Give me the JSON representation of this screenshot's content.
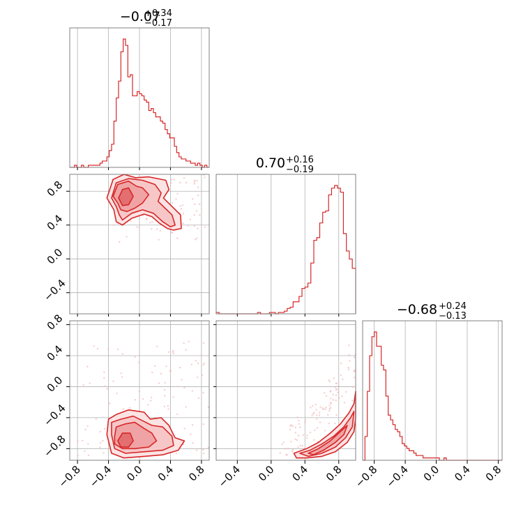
{
  "chart_data": {
    "type": "corner",
    "color": "#d62728",
    "parameters": [
      {
        "title_value": "−0.07",
        "title_plus": "+0.34",
        "title_minus": "−0.17",
        "range": [
          -0.9,
          0.9
        ]
      },
      {
        "title_value": "0.70",
        "title_plus": "+0.16",
        "title_minus": "−0.19",
        "range": [
          -0.65,
          1.0
        ]
      },
      {
        "title_value": "−0.68",
        "title_plus": "+0.24",
        "title_minus": "−0.13",
        "range": [
          -0.95,
          0.85
        ]
      }
    ],
    "ticks": {
      "p0": [
        -0.8,
        -0.4,
        0.0,
        0.4,
        0.8
      ],
      "p1": [
        -0.4,
        0.0,
        0.4,
        0.8
      ],
      "p2": [
        -0.8,
        -0.4,
        0.0,
        0.4,
        0.8
      ]
    },
    "tick_labels": {
      "p0": [
        "−0.8",
        "−0.4",
        "0.0",
        "0.4",
        "0.8"
      ],
      "p1": [
        "−0.4",
        "0.0",
        "0.4",
        "0.8"
      ],
      "p2": [
        "−0.8",
        "−0.4",
        "0.0",
        "0.4",
        "0.8"
      ]
    },
    "grid": true,
    "hist_0": {
      "edges": [
        -0.9,
        -0.87,
        -0.84,
        -0.81,
        -0.78,
        -0.75,
        -0.72,
        -0.69,
        -0.66,
        -0.63,
        -0.6,
        -0.57,
        -0.54,
        -0.51,
        -0.48,
        -0.45,
        -0.42,
        -0.39,
        -0.36,
        -0.33,
        -0.3,
        -0.27,
        -0.24,
        -0.21,
        -0.18,
        -0.15,
        -0.12,
        -0.09,
        -0.06,
        -0.03,
        0.0,
        0.03,
        0.06,
        0.09,
        0.12,
        0.15,
        0.18,
        0.21,
        0.24,
        0.27,
        0.3,
        0.33,
        0.36,
        0.39,
        0.42,
        0.45,
        0.48,
        0.51,
        0.54,
        0.57,
        0.6,
        0.63,
        0.66,
        0.69,
        0.72,
        0.75,
        0.78,
        0.81,
        0.84,
        0.87,
        0.9
      ],
      "values": [
        0,
        0,
        1,
        0,
        0,
        1,
        0,
        0,
        1,
        1,
        1,
        1,
        1,
        2,
        3,
        3,
        5,
        8,
        11,
        22,
        33,
        41,
        55,
        61,
        58,
        43,
        44,
        34,
        34,
        36,
        35,
        34,
        32,
        31,
        27,
        28,
        26,
        24,
        24,
        22,
        21,
        18,
        16,
        14,
        14,
        10,
        7,
        5,
        4,
        4,
        3,
        3,
        2,
        2,
        1,
        2,
        1,
        0,
        1,
        0
      ]
    },
    "hist_1": {
      "edges": [
        -0.65,
        -0.615,
        -0.58,
        -0.545,
        -0.51,
        -0.475,
        -0.44,
        -0.405,
        -0.37,
        -0.335,
        -0.3,
        -0.265,
        -0.23,
        -0.195,
        -0.16,
        -0.125,
        -0.09,
        -0.055,
        -0.02,
        0.015,
        0.05,
        0.085,
        0.12,
        0.155,
        0.19,
        0.225,
        0.26,
        0.295,
        0.33,
        0.365,
        0.4,
        0.435,
        0.47,
        0.505,
        0.54,
        0.575,
        0.61,
        0.645,
        0.68,
        0.715,
        0.75,
        0.785,
        0.82,
        0.855,
        0.89,
        0.925,
        0.96,
        1.0
      ],
      "values": [
        1,
        0,
        0,
        0,
        0,
        0,
        0,
        0,
        0,
        0,
        0,
        0,
        0,
        0,
        1,
        0,
        0,
        0,
        1,
        1,
        0,
        1,
        1,
        2,
        4,
        5,
        9,
        9,
        13,
        19,
        20,
        23,
        38,
        55,
        57,
        68,
        76,
        77,
        89,
        94,
        96,
        94,
        91,
        60,
        47,
        41,
        34
      ]
    },
    "hist_2": {
      "edges": [
        -0.95,
        -0.92,
        -0.89,
        -0.86,
        -0.83,
        -0.8,
        -0.77,
        -0.74,
        -0.71,
        -0.68,
        -0.65,
        -0.62,
        -0.59,
        -0.56,
        -0.53,
        -0.5,
        -0.47,
        -0.44,
        -0.41,
        -0.38,
        -0.35,
        -0.32,
        -0.29,
        -0.26,
        -0.23,
        -0.2,
        -0.17,
        -0.14,
        -0.11,
        -0.08,
        -0.05,
        -0.02,
        0.01,
        0.04,
        0.07,
        0.1,
        0.13,
        0.16,
        0.19,
        0.22,
        0.25,
        0.28,
        0.31,
        0.34,
        0.37,
        0.4,
        0.43,
        0.46,
        0.49,
        0.52,
        0.55,
        0.58,
        0.61,
        0.64,
        0.67,
        0.7,
        0.73,
        0.76,
        0.79,
        0.82,
        0.85
      ],
      "values": [
        0,
        10,
        29,
        44,
        52,
        54,
        48,
        48,
        40,
        38,
        27,
        19,
        17,
        15,
        13,
        12,
        10,
        7,
        6,
        5,
        4,
        4,
        3,
        2,
        2,
        2,
        1,
        1,
        1,
        1,
        1,
        1,
        1,
        0,
        0,
        1,
        0,
        0,
        0,
        0,
        0,
        0,
        0,
        0,
        0,
        0,
        0,
        0,
        0,
        0,
        0,
        0,
        0,
        0,
        0,
        0,
        0,
        0,
        0,
        0
      ]
    },
    "contours_1_0": [
      [
        [
          -0.42,
          0.72
        ],
        [
          -0.34,
          0.94
        ],
        [
          -0.2,
          1.0
        ],
        [
          -0.05,
          0.96
        ],
        [
          0.12,
          0.97
        ],
        [
          0.34,
          0.93
        ],
        [
          0.38,
          0.82
        ],
        [
          0.31,
          0.72
        ],
        [
          0.42,
          0.62
        ],
        [
          0.53,
          0.52
        ],
        [
          0.54,
          0.36
        ],
        [
          0.44,
          0.34
        ],
        [
          0.36,
          0.36
        ],
        [
          0.26,
          0.42
        ],
        [
          0.16,
          0.5
        ],
        [
          0.06,
          0.53
        ],
        [
          -0.1,
          0.48
        ],
        [
          -0.22,
          0.4
        ],
        [
          -0.3,
          0.44
        ],
        [
          -0.33,
          0.58
        ],
        [
          -0.42,
          0.72
        ]
      ],
      [
        [
          -0.36,
          0.72
        ],
        [
          -0.3,
          0.9
        ],
        [
          -0.14,
          0.95
        ],
        [
          0.04,
          0.93
        ],
        [
          0.2,
          0.88
        ],
        [
          0.28,
          0.78
        ],
        [
          0.24,
          0.68
        ],
        [
          0.33,
          0.6
        ],
        [
          0.42,
          0.52
        ],
        [
          0.46,
          0.4
        ],
        [
          0.4,
          0.38
        ],
        [
          0.3,
          0.44
        ],
        [
          0.18,
          0.54
        ],
        [
          0.04,
          0.58
        ],
        [
          -0.1,
          0.54
        ],
        [
          -0.22,
          0.46
        ],
        [
          -0.26,
          0.52
        ],
        [
          -0.3,
          0.62
        ],
        [
          -0.36,
          0.72
        ]
      ],
      [
        [
          -0.34,
          0.74
        ],
        [
          -0.28,
          0.88
        ],
        [
          -0.14,
          0.92
        ],
        [
          -0.04,
          0.86
        ],
        [
          0.04,
          0.84
        ],
        [
          0.12,
          0.76
        ],
        [
          0.04,
          0.66
        ],
        [
          -0.06,
          0.6
        ],
        [
          -0.16,
          0.56
        ],
        [
          -0.24,
          0.58
        ],
        [
          -0.28,
          0.66
        ],
        [
          -0.34,
          0.74
        ]
      ],
      [
        [
          -0.27,
          0.72
        ],
        [
          -0.22,
          0.82
        ],
        [
          -0.14,
          0.84
        ],
        [
          -0.08,
          0.74
        ],
        [
          -0.14,
          0.64
        ],
        [
          -0.22,
          0.63
        ],
        [
          -0.27,
          0.72
        ]
      ]
    ],
    "contours_2_0": [
      [
        [
          -0.42,
          -0.62
        ],
        [
          -0.4,
          -0.42
        ],
        [
          -0.3,
          -0.36
        ],
        [
          -0.14,
          -0.3
        ],
        [
          0.06,
          -0.33
        ],
        [
          0.14,
          -0.42
        ],
        [
          0.28,
          -0.4
        ],
        [
          0.38,
          -0.5
        ],
        [
          0.46,
          -0.66
        ],
        [
          0.58,
          -0.7
        ],
        [
          0.5,
          -0.82
        ],
        [
          0.3,
          -0.88
        ],
        [
          0.06,
          -0.9
        ],
        [
          -0.2,
          -0.92
        ],
        [
          -0.36,
          -0.86
        ],
        [
          -0.42,
          -0.62
        ]
      ],
      [
        [
          -0.36,
          -0.62
        ],
        [
          -0.36,
          -0.46
        ],
        [
          -0.24,
          -0.42
        ],
        [
          -0.08,
          -0.38
        ],
        [
          0.04,
          -0.44
        ],
        [
          0.16,
          -0.5
        ],
        [
          0.3,
          -0.52
        ],
        [
          0.42,
          -0.64
        ],
        [
          0.44,
          -0.76
        ],
        [
          0.3,
          -0.82
        ],
        [
          0.06,
          -0.84
        ],
        [
          -0.18,
          -0.86
        ],
        [
          -0.32,
          -0.8
        ],
        [
          -0.36,
          -0.62
        ]
      ],
      [
        [
          -0.32,
          -0.64
        ],
        [
          -0.3,
          -0.52
        ],
        [
          -0.18,
          -0.48
        ],
        [
          -0.06,
          -0.46
        ],
        [
          0.06,
          -0.54
        ],
        [
          0.16,
          -0.6
        ],
        [
          0.22,
          -0.7
        ],
        [
          0.12,
          -0.78
        ],
        [
          -0.06,
          -0.8
        ],
        [
          -0.22,
          -0.8
        ],
        [
          -0.32,
          -0.74
        ],
        [
          -0.32,
          -0.64
        ]
      ],
      [
        [
          -0.28,
          -0.7
        ],
        [
          -0.22,
          -0.6
        ],
        [
          -0.12,
          -0.6
        ],
        [
          -0.08,
          -0.7
        ],
        [
          -0.14,
          -0.78
        ],
        [
          -0.24,
          -0.78
        ],
        [
          -0.28,
          -0.7
        ]
      ]
    ],
    "contours_2_1": [
      [
        [
          0.27,
          -0.86
        ],
        [
          0.42,
          -0.8
        ],
        [
          0.56,
          -0.72
        ],
        [
          0.7,
          -0.6
        ],
        [
          0.82,
          -0.48
        ],
        [
          0.92,
          -0.34
        ],
        [
          0.98,
          -0.22
        ],
        [
          1.0,
          -0.06
        ],
        [
          1.0,
          -0.4
        ],
        [
          0.98,
          -0.58
        ],
        [
          0.9,
          -0.72
        ],
        [
          0.76,
          -0.84
        ],
        [
          0.6,
          -0.9
        ],
        [
          0.42,
          -0.92
        ],
        [
          0.3,
          -0.92
        ],
        [
          0.27,
          -0.86
        ]
      ],
      [
        [
          0.34,
          -0.86
        ],
        [
          0.46,
          -0.82
        ],
        [
          0.6,
          -0.74
        ],
        [
          0.74,
          -0.64
        ],
        [
          0.86,
          -0.52
        ],
        [
          0.94,
          -0.4
        ],
        [
          0.98,
          -0.32
        ],
        [
          0.96,
          -0.52
        ],
        [
          0.88,
          -0.66
        ],
        [
          0.76,
          -0.78
        ],
        [
          0.6,
          -0.86
        ],
        [
          0.44,
          -0.9
        ],
        [
          0.34,
          -0.86
        ]
      ],
      [
        [
          0.44,
          -0.86
        ],
        [
          0.56,
          -0.8
        ],
        [
          0.7,
          -0.7
        ],
        [
          0.82,
          -0.58
        ],
        [
          0.9,
          -0.5
        ],
        [
          0.86,
          -0.62
        ],
        [
          0.76,
          -0.72
        ],
        [
          0.62,
          -0.82
        ],
        [
          0.5,
          -0.88
        ],
        [
          0.44,
          -0.86
        ]
      ]
    ]
  }
}
